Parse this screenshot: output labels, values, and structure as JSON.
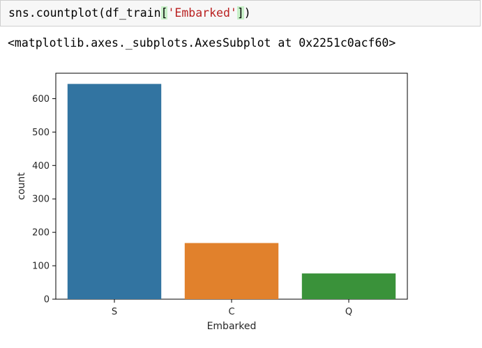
{
  "code_cell": {
    "prefix": "sns.countplot(df_train",
    "open_bracket": "[",
    "string_literal": "'Embarked'",
    "close_bracket": "]",
    "suffix": ")"
  },
  "output": {
    "repr": "<matplotlib.axes._subplots.AxesSubplot at 0x2251c0acf60>"
  },
  "chart_data": {
    "type": "bar",
    "categories": [
      "S",
      "C",
      "Q"
    ],
    "values": [
      644,
      168,
      77
    ],
    "colors": [
      "#3274a1",
      "#e1812c",
      "#3a923a"
    ],
    "xlabel": "Embarked",
    "ylabel": "count",
    "ylim": [
      0,
      676
    ],
    "yticks": [
      0,
      100,
      200,
      300,
      400,
      500,
      600
    ],
    "grid": false,
    "legend": "none"
  }
}
